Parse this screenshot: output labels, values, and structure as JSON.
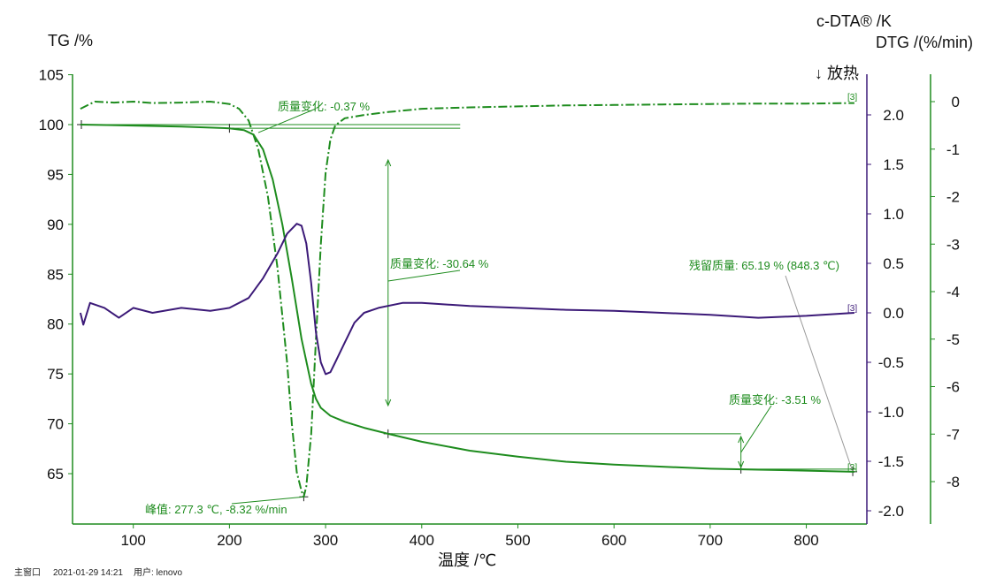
{
  "axes": {
    "tg_label": "TG /%",
    "dta_label": "c-DTA® /K",
    "dtg_label": "DTG /(%/min)",
    "x_label": "温度 /℃",
    "exo_label": "↓ 放热"
  },
  "footer": {
    "window": "主窗口",
    "datetime": "2021-01-29 14:21",
    "user": "用户: lenovo"
  },
  "colors": {
    "tg": "#1e8c1e",
    "dtg": "#1e8c1e",
    "dta": "#3c1a78",
    "axis_green": "#1e8c1e",
    "axis_purple": "#3c1a78",
    "text": "#111111"
  },
  "chart_data": {
    "type": "line",
    "x_range": [
      45,
      855
    ],
    "x_ticks": [
      "100",
      "200",
      "300",
      "400",
      "500",
      "600",
      "700",
      "800"
    ],
    "tg_range": [
      60,
      105
    ],
    "tg_ticks": [
      "105",
      "100",
      "95",
      "90",
      "85",
      "80",
      "75",
      "70",
      "65"
    ],
    "dta_range": [
      -2.2,
      2.5
    ],
    "dta_ticks": [
      "2.0",
      "1.5",
      "1.0",
      "0.5",
      "0.0",
      "-0.5",
      "-1.0",
      "-1.5",
      "-2.0"
    ],
    "dtg_range": [
      -9,
      0.6
    ],
    "dtg_ticks": [
      "0",
      "-1",
      "-2",
      "-3",
      "-4",
      "-5",
      "-6",
      "-7",
      "-8"
    ],
    "series": [
      {
        "name": "TG",
        "axis": "tg",
        "x": [
          45,
          100,
          150,
          200,
          215,
          225,
          235,
          245,
          255,
          265,
          275,
          285,
          290,
          295,
          305,
          320,
          340,
          365,
          400,
          450,
          500,
          550,
          600,
          650,
          700,
          750,
          800,
          850
        ],
        "y": [
          100.0,
          99.9,
          99.8,
          99.63,
          99.45,
          99.0,
          97.5,
          94.5,
          90.0,
          84.5,
          78.5,
          74.0,
          72.5,
          71.6,
          70.8,
          70.2,
          69.6,
          69.0,
          68.2,
          67.3,
          66.7,
          66.2,
          65.9,
          65.7,
          65.5,
          65.4,
          65.3,
          65.19
        ]
      },
      {
        "name": "DTG",
        "axis": "dtg",
        "x": [
          45,
          60,
          80,
          100,
          120,
          150,
          180,
          200,
          210,
          220,
          230,
          240,
          250,
          260,
          265,
          270,
          275,
          277.3,
          280,
          285,
          290,
          295,
          300,
          305,
          310,
          320,
          340,
          365,
          400,
          450,
          500,
          550,
          600,
          650,
          700,
          750,
          800,
          850
        ],
        "y": [
          -0.15,
          0.0,
          -0.02,
          0.0,
          -0.03,
          -0.02,
          0.0,
          -0.05,
          -0.15,
          -0.4,
          -1.0,
          -2.0,
          -3.5,
          -5.5,
          -6.8,
          -7.8,
          -8.2,
          -8.32,
          -8.1,
          -7.0,
          -5.0,
          -3.0,
          -1.5,
          -0.8,
          -0.5,
          -0.35,
          -0.28,
          -0.22,
          -0.15,
          -0.12,
          -0.1,
          -0.08,
          -0.07,
          -0.06,
          -0.05,
          -0.04,
          -0.04,
          -0.03
        ]
      },
      {
        "name": "c-DTA",
        "axis": "dta",
        "x": [
          45,
          48,
          55,
          70,
          85,
          100,
          120,
          150,
          180,
          200,
          220,
          235,
          250,
          260,
          270,
          275,
          280,
          285,
          290,
          295,
          300,
          305,
          310,
          320,
          330,
          340,
          355,
          380,
          400,
          450,
          500,
          550,
          600,
          650,
          700,
          750,
          800,
          850
        ],
        "y": [
          0.0,
          -0.12,
          0.1,
          0.05,
          -0.05,
          0.05,
          0.0,
          0.05,
          0.02,
          0.05,
          0.15,
          0.35,
          0.6,
          0.8,
          0.9,
          0.88,
          0.7,
          0.3,
          -0.2,
          -0.5,
          -0.62,
          -0.6,
          -0.5,
          -0.3,
          -0.1,
          0.0,
          0.05,
          0.1,
          0.1,
          0.07,
          0.05,
          0.03,
          0.02,
          0.0,
          -0.02,
          -0.05,
          -0.03,
          0.0
        ]
      }
    ],
    "annotations": [
      {
        "text": "质量变化: -0.37 %"
      },
      {
        "text": "质量变化: -30.64 %"
      },
      {
        "text": "残留质量: 65.19 % (848.3 ℃)"
      },
      {
        "text": "质量变化: -3.51 %"
      },
      {
        "text": "峰值: 277.3 ℃, -8.32 %/min"
      }
    ],
    "curve_tags": [
      "[3]",
      "[3]",
      "[3]"
    ]
  }
}
